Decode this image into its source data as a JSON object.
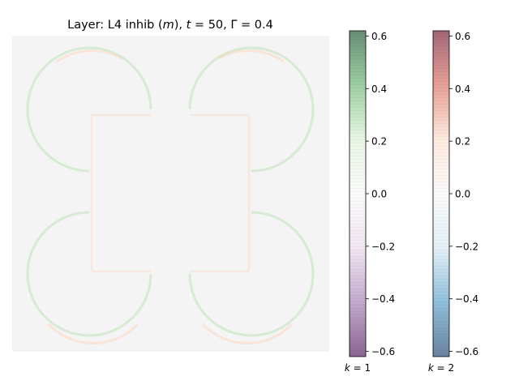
{
  "chart_data": {
    "type": "heatmap",
    "title": "Layer: L4 inhib (m), t = 50, Γ = 0.4",
    "title_parts": {
      "prefix": "Layer: L4 inhib (",
      "m": "m",
      "mid1": "), ",
      "t": "t",
      "mid2": " = 50, Γ = 0.4"
    },
    "image": {
      "background": "#f4f4f4",
      "description_values": {
        "k1_positive_green_max": 0.08,
        "k2_positive_orange_max": 0.08
      },
      "pattern": "four three-quarter rings joined by a central square outline"
    },
    "colorbars": [
      {
        "label": "k = 1",
        "label_k": "k",
        "label_rest": " = 1",
        "colormap": "PRGn",
        "colors": [
          "#40004b",
          "#9970ab",
          "#e7d4e8",
          "#f7f7f7",
          "#d9f0d3",
          "#5aae61",
          "#00441b"
        ],
        "range": [
          -0.62,
          0.62
        ],
        "ticks": [
          0.6,
          0.4,
          0.2,
          0.0,
          -0.2,
          -0.4,
          -0.6
        ],
        "tick_labels": [
          "0.6",
          "0.4",
          "0.2",
          "0.0",
          "−0.2",
          "−0.4",
          "−0.6"
        ]
      },
      {
        "label": "k = 2",
        "label_k": "k",
        "label_rest": " = 2",
        "colormap": "RdBu_r",
        "colors": [
          "#053061",
          "#4393c3",
          "#d1e5f0",
          "#f7f7f7",
          "#fddbc7",
          "#d6604d",
          "#67001f"
        ],
        "range": [
          -0.62,
          0.62
        ],
        "ticks": [
          0.6,
          0.4,
          0.2,
          0.0,
          -0.2,
          -0.4,
          -0.6
        ],
        "tick_labels": [
          "0.6",
          "0.4",
          "0.2",
          "0.0",
          "−0.2",
          "−0.4",
          "−0.6"
        ]
      }
    ]
  }
}
